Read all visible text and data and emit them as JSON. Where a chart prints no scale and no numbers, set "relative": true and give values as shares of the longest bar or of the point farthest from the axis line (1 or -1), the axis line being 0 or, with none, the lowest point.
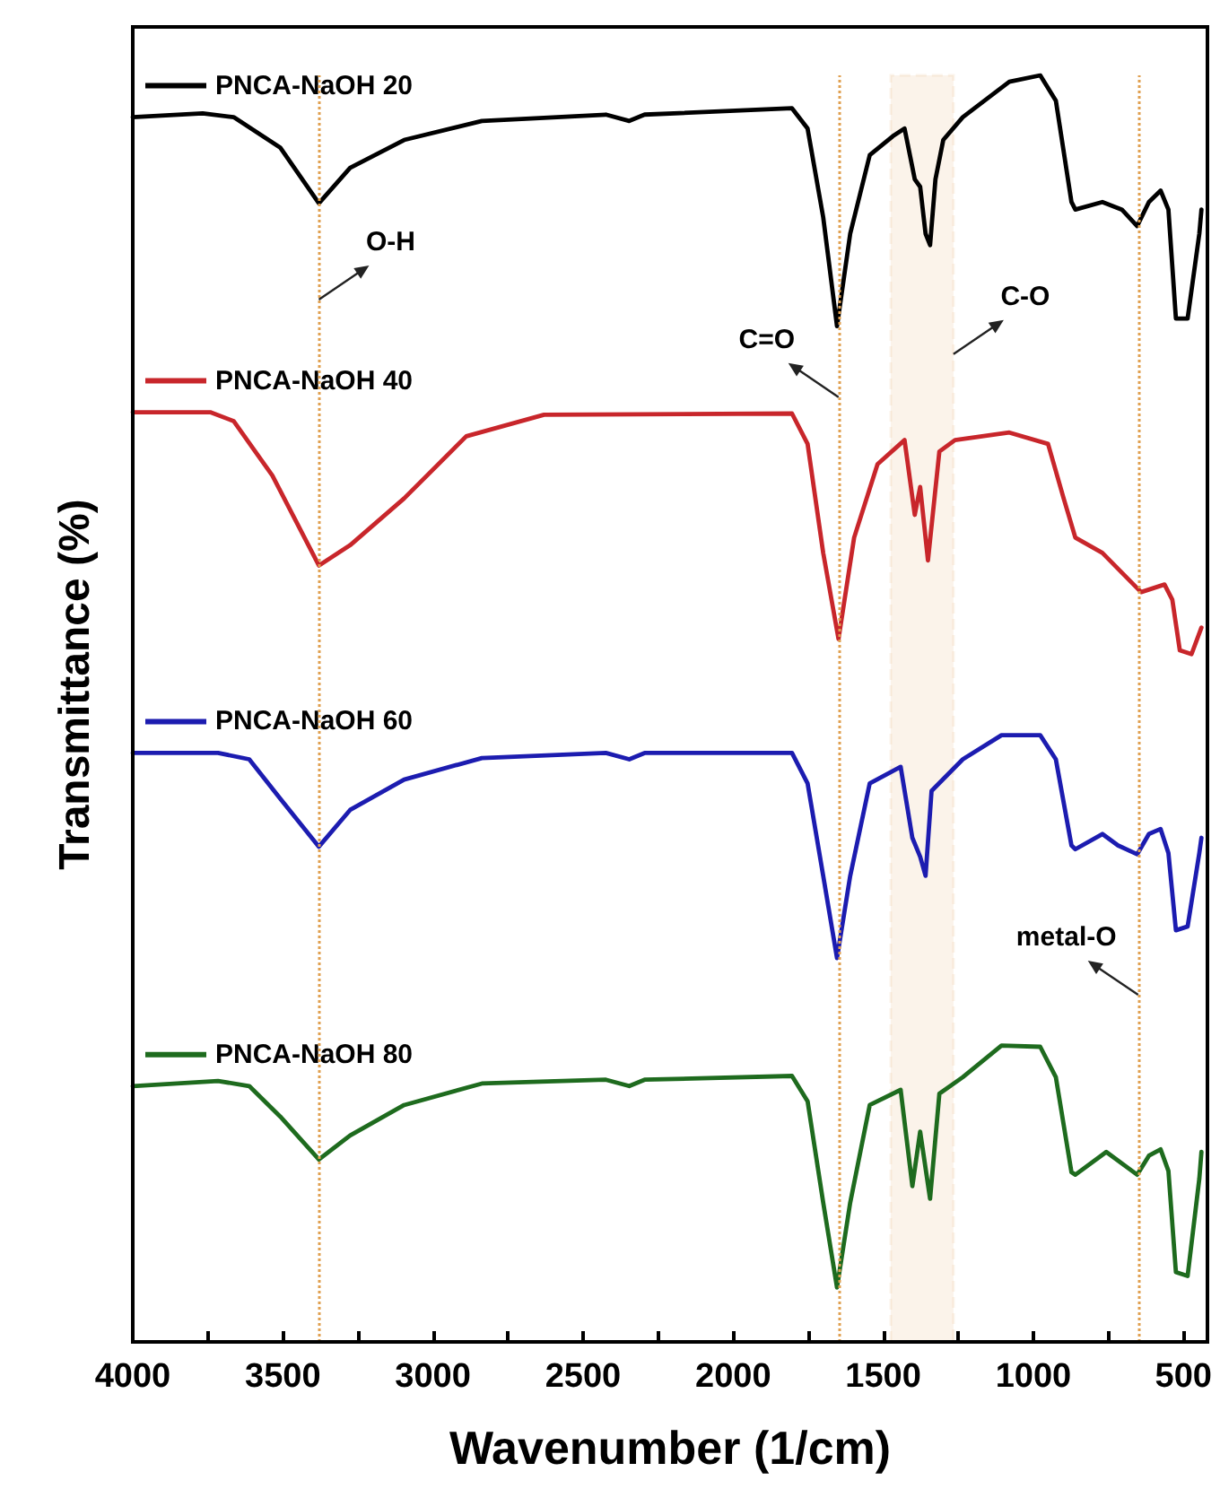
{
  "chart_data": {
    "type": "line",
    "xlabel": "Wavenumber (1/cm)",
    "ylabel": "Transmittance (%)",
    "relative": true,
    "legend": "left",
    "marker": "none",
    "line_style": "solid",
    "xlim": [
      4000,
      420
    ],
    "xticks": [
      4000,
      {
        "value": 3750,
        "label": null
      },
      3500,
      {
        "value": 3250,
        "label": null
      },
      3000,
      {
        "value": 2750,
        "label": null
      },
      2500,
      {
        "value": 2250,
        "label": null
      },
      2000,
      {
        "value": 1750,
        "label": null
      },
      1500,
      {
        "value": 1250,
        "label": null
      },
      1000,
      {
        "value": 750,
        "label": null
      },
      500
    ],
    "series": [
      {
        "name": "PNCA-NaOH 20",
        "color": "#000000",
        "x": [
          4000,
          3767,
          3664,
          3509,
          3380,
          3276,
          3096,
          2837,
          2424,
          2346,
          2295,
          1804,
          1752,
          1700,
          1654,
          1610,
          1545,
          1468,
          1429,
          1395,
          1377,
          1359,
          1344,
          1326,
          1300,
          1235,
          1080,
          977,
          925,
          873,
          860,
          770,
          705,
          654,
          615,
          576,
          550,
          525,
          486,
          447,
          440
        ],
        "values": [
          0.967,
          0.97,
          0.967,
          0.943,
          0.899,
          0.927,
          0.949,
          0.964,
          0.969,
          0.964,
          0.969,
          0.974,
          0.958,
          0.888,
          0.802,
          0.875,
          0.937,
          0.952,
          0.958,
          0.918,
          0.912,
          0.875,
          0.866,
          0.918,
          0.949,
          0.967,
          0.995,
          1,
          0.98,
          0.9,
          0.894,
          0.9,
          0.894,
          0.881,
          0.9,
          0.909,
          0.894,
          0.808,
          0.808,
          0.875,
          0.894
        ]
      },
      {
        "name": "PNCA-NaOH 40",
        "color": "#c8262b",
        "x": [
          4000,
          3742,
          3664,
          3535,
          3380,
          3276,
          3096,
          2889,
          2630,
          1804,
          1752,
          1700,
          1649,
          1597,
          1519,
          1429,
          1395,
          1377,
          1351,
          1313,
          1261,
          1080,
          951,
          899,
          860,
          770,
          641,
          563,
          537,
          512,
          473,
          440
        ],
        "values": [
          0.734,
          0.734,
          0.727,
          0.684,
          0.613,
          0.629,
          0.666,
          0.715,
          0.732,
          0.733,
          0.709,
          0.623,
          0.555,
          0.635,
          0.693,
          0.712,
          0.653,
          0.675,
          0.617,
          0.703,
          0.712,
          0.718,
          0.709,
          0.666,
          0.635,
          0.623,
          0.592,
          0.598,
          0.586,
          0.546,
          0.543,
          0.564
        ]
      },
      {
        "name": "PNCA-NaOH 60",
        "color": "#1c1cb0",
        "x": [
          4000,
          3716,
          3612,
          3509,
          3380,
          3276,
          3096,
          2837,
          2424,
          2346,
          2295,
          1804,
          1752,
          1700,
          1654,
          1610,
          1545,
          1442,
          1403,
          1377,
          1359,
          1339,
          1235,
          1106,
          977,
          925,
          873,
          860,
          770,
          718,
          654,
          615,
          576,
          550,
          525,
          486,
          447,
          440
        ],
        "values": [
          0.465,
          0.465,
          0.46,
          0.429,
          0.391,
          0.42,
          0.444,
          0.461,
          0.465,
          0.46,
          0.465,
          0.465,
          0.441,
          0.368,
          0.303,
          0.368,
          0.441,
          0.454,
          0.398,
          0.383,
          0.368,
          0.435,
          0.46,
          0.479,
          0.479,
          0.46,
          0.392,
          0.389,
          0.401,
          0.392,
          0.385,
          0.401,
          0.405,
          0.386,
          0.325,
          0.328,
          0.386,
          0.398
        ]
      },
      {
        "name": "PNCA-NaOH 80",
        "color": "#1e6b1e",
        "x": [
          4000,
          3716,
          3612,
          3509,
          3380,
          3276,
          3096,
          2837,
          2424,
          2346,
          2295,
          1804,
          1752,
          1700,
          1654,
          1610,
          1545,
          1442,
          1403,
          1377,
          1344,
          1313,
          1235,
          1106,
          977,
          925,
          873,
          860,
          757,
          654,
          615,
          576,
          550,
          525,
          486,
          447,
          440
        ],
        "values": [
          0.202,
          0.206,
          0.202,
          0.178,
          0.144,
          0.163,
          0.187,
          0.204,
          0.207,
          0.202,
          0.207,
          0.21,
          0.19,
          0.11,
          0.043,
          0.11,
          0.187,
          0.199,
          0.123,
          0.166,
          0.113,
          0.196,
          0.209,
          0.234,
          0.233,
          0.209,
          0.134,
          0.132,
          0.15,
          0.132,
          0.147,
          0.152,
          0.135,
          0.055,
          0.052,
          0.129,
          0.15
        ]
      }
    ],
    "ref_lines": [
      {
        "axis": "x",
        "value": 3380,
        "color": "#e0a050",
        "line_style": "dotted"
      },
      {
        "axis": "x",
        "value": 1649,
        "color": "#e0a050",
        "line_style": "dotted"
      },
      {
        "axis": "x",
        "value": 651,
        "color": "#e0a050",
        "line_style": "dotted"
      }
    ],
    "bands": [
      {
        "axis": "x",
        "from": 1475,
        "to": 1266,
        "color": "#e0a050"
      }
    ],
    "annotations": [
      {
        "text": "O-H",
        "x": 3380,
        "y": 0.823
      },
      {
        "text": "C=O",
        "x": 1649,
        "y": 0.746
      },
      {
        "text": "C-O",
        "x": 1266,
        "y": 0.78
      },
      {
        "text": "metal-O",
        "x": 651,
        "y": 0.274
      }
    ]
  }
}
